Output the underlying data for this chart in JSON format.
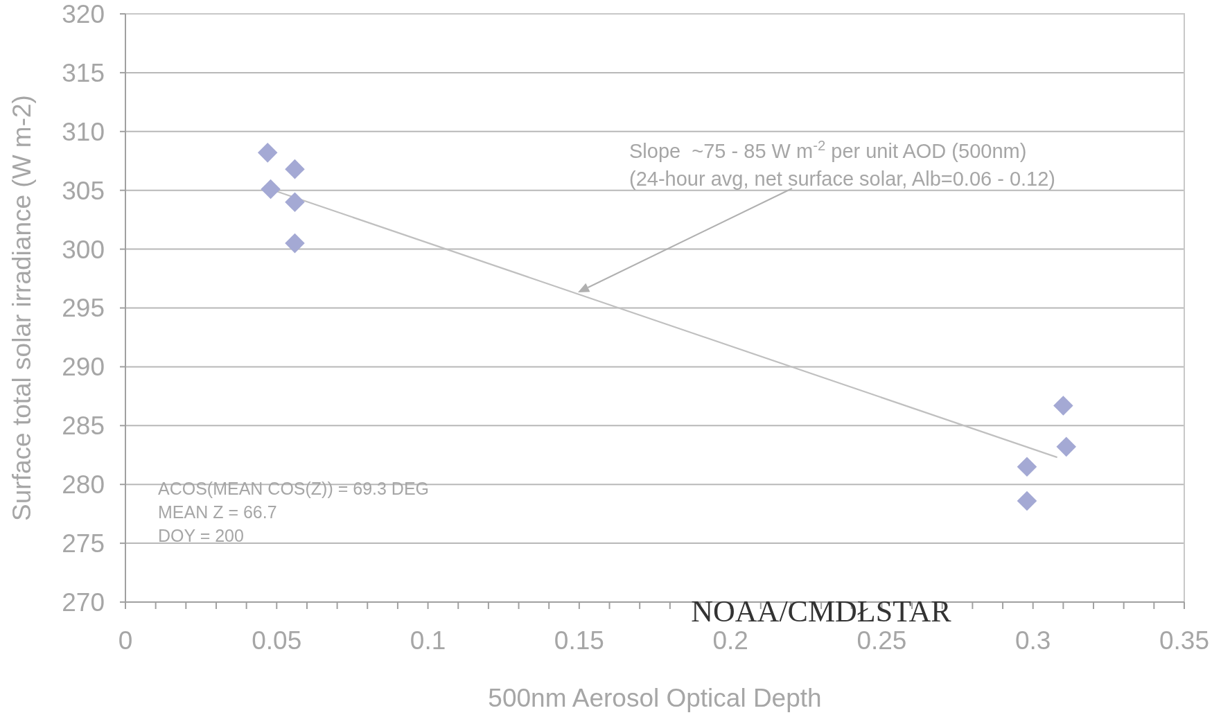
{
  "chart_data": {
    "type": "scatter",
    "xlabel": "500nm Aerosol Optical Depth",
    "ylabel": "Surface total solar irradiance (W m-2)",
    "xlim": [
      0,
      0.35
    ],
    "ylim": [
      270,
      320
    ],
    "xticks": [
      0,
      {
        "value": 0.01,
        "label": null
      },
      {
        "value": 0.02,
        "label": null
      },
      {
        "value": 0.03,
        "label": null
      },
      {
        "value": 0.04,
        "label": null
      },
      0.05,
      {
        "value": 0.06,
        "label": null
      },
      {
        "value": 0.07,
        "label": null
      },
      {
        "value": 0.08,
        "label": null
      },
      {
        "value": 0.09,
        "label": null
      },
      0.1,
      {
        "value": 0.11,
        "label": null
      },
      {
        "value": 0.12,
        "label": null
      },
      {
        "value": 0.13,
        "label": null
      },
      {
        "value": 0.14,
        "label": null
      },
      0.15,
      {
        "value": 0.16,
        "label": null
      },
      {
        "value": 0.17,
        "label": null
      },
      {
        "value": 0.18,
        "label": null
      },
      {
        "value": 0.19,
        "label": null
      },
      0.2,
      {
        "value": 0.21,
        "label": null
      },
      {
        "value": 0.22,
        "label": null
      },
      {
        "value": 0.23,
        "label": null
      },
      {
        "value": 0.24,
        "label": null
      },
      0.25,
      {
        "value": 0.26,
        "label": null
      },
      {
        "value": 0.27,
        "label": null
      },
      {
        "value": 0.28,
        "label": null
      },
      {
        "value": 0.29,
        "label": null
      },
      0.3,
      {
        "value": 0.31,
        "label": null
      },
      {
        "value": 0.32,
        "label": null
      },
      {
        "value": 0.33,
        "label": null
      },
      {
        "value": 0.34,
        "label": null
      },
      0.35
    ],
    "yticks": [
      270,
      275,
      280,
      285,
      290,
      295,
      300,
      305,
      310,
      315,
      320
    ],
    "grid": "y",
    "marker": "diamond",
    "series": [
      {
        "color": "#a4a9d4",
        "x": [
          0.047,
          0.056,
          0.048,
          0.056,
          0.056,
          0.31,
          0.311,
          0.298,
          0.298
        ],
        "values": [
          308.2,
          306.8,
          305.1,
          304.0,
          300.5,
          286.7,
          283.2,
          281.5,
          278.6
        ]
      },
      {
        "type": "line",
        "color": "#c0c0c0",
        "marker": "none",
        "x": [
          0.049,
          0.308
        ],
        "values": [
          305.0,
          282.3
        ]
      }
    ],
    "annotations": [
      "Slope  ~75 - 85 W m$^{-2}$ per unit AOD (500nm)\n(24-hour avg, net surface solar, Alb=0.06 - 0.12)",
      "ACOS(MEAN COS(Z)) = 69.3 DEG\nMEAN Z = 66.7\nDOY = 200",
      "NOAA/CMDŁSTAR"
    ]
  }
}
